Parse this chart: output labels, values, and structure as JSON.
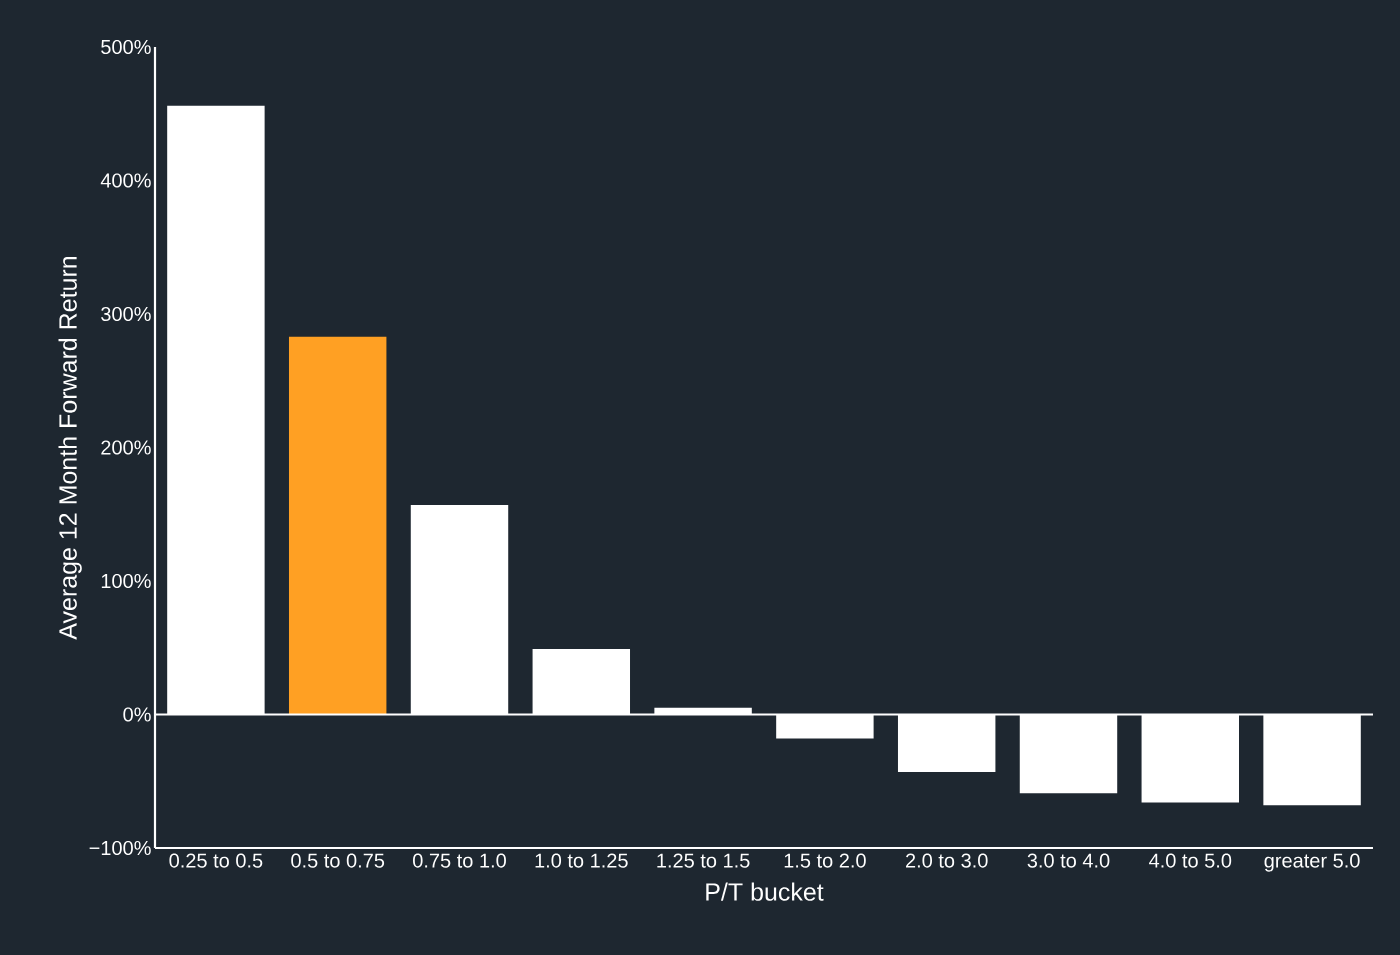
{
  "chart_data": {
    "type": "bar",
    "xlabel": "P/T bucket",
    "ylabel": "Average 12 Month Forward Return",
    "categories": [
      "0.25 to 0.5",
      "0.5 to 0.75",
      "0.75 to 1.0",
      "1.0 to 1.25",
      "1.25 to 1.5",
      "1.5 to 2.0",
      "2.0 to 3.0",
      "3.0 to 4.0",
      "4.0 to 5.0",
      "greater 5.0"
    ],
    "values": [
      456,
      283,
      157,
      49,
      5,
      -18,
      -43,
      -59,
      -66,
      -68
    ],
    "colors": [
      "#ffffff",
      "#ffa023",
      "#ffffff",
      "#ffffff",
      "#ffffff",
      "#ffffff",
      "#ffffff",
      "#ffffff",
      "#ffffff",
      "#ffffff"
    ],
    "ylim": [
      -100,
      500
    ],
    "yticks": [
      {
        "value": -100,
        "label": "−100%"
      },
      {
        "value": 0,
        "label": "0%"
      },
      {
        "value": 100,
        "label": "100%"
      },
      {
        "value": 200,
        "label": "200%"
      },
      {
        "value": 300,
        "label": "300%"
      },
      {
        "value": 400,
        "label": "400%"
      },
      {
        "value": 500,
        "label": "500%"
      }
    ],
    "ref_lines": [
      {
        "axis": "y",
        "value": 0,
        "color": "#ffffff"
      }
    ]
  }
}
